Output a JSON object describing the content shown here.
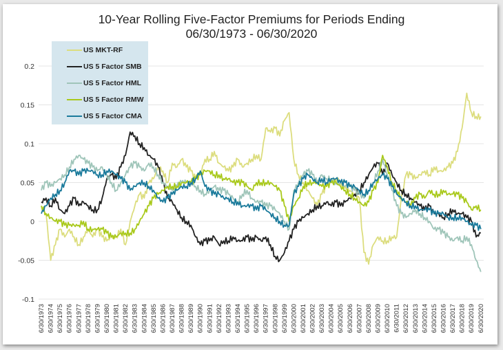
{
  "chart_data": {
    "type": "line",
    "title": "10-Year Rolling Five-Factor Premiums for Periods Ending",
    "subtitle": "06/30/1973 - 06/30/2020",
    "xlabel": "",
    "ylabel": "",
    "ylim": [
      -0.1,
      0.2
    ],
    "yticks": [
      0.2,
      0.15,
      0.1,
      0.05,
      0,
      -0.05,
      -0.1
    ],
    "ytick_labels": [
      "0.2",
      "0.15",
      "0.1",
      "0.05",
      "0",
      "-0.05",
      "-0.1"
    ],
    "grid": true,
    "legend_position": "top-left",
    "x_tick_labels": [
      "6/30/1973",
      "6/30/1974",
      "6/30/1975",
      "6/30/1976",
      "6/30/1977",
      "6/30/1978",
      "6/30/1979",
      "6/30/1980",
      "6/30/1981",
      "6/30/1982",
      "6/30/1983",
      "6/30/1984",
      "6/30/1985",
      "6/30/1986",
      "6/30/1987",
      "6/30/1988",
      "6/30/1989",
      "6/30/1990",
      "6/30/1991",
      "6/30/1992",
      "6/30/1993",
      "6/30/1994",
      "6/30/1995",
      "6/30/1996",
      "6/30/1997",
      "6/30/1998",
      "6/30/1999",
      "6/30/2000",
      "6/30/2001",
      "6/30/2002",
      "6/30/2003",
      "6/30/2004",
      "6/30/2005",
      "6/30/2006",
      "6/30/2007",
      "6/30/2008",
      "6/30/2009",
      "6/30/2010",
      "6/30/2011",
      "6/30/2012",
      "6/30/2013",
      "6/30/2014",
      "6/30/2015",
      "6/30/2016",
      "6/30/2017",
      "6/30/2018",
      "6/30/2019",
      "6/30/2020"
    ],
    "x": [
      1973.5,
      1974,
      1974.5,
      1975,
      1975.5,
      1976,
      1976.5,
      1977,
      1977.5,
      1978,
      1978.5,
      1979,
      1979.5,
      1980,
      1980.5,
      1981,
      1981.5,
      1982,
      1982.5,
      1983,
      1983.5,
      1984,
      1984.5,
      1985,
      1985.5,
      1986,
      1986.5,
      1987,
      1987.5,
      1988,
      1988.5,
      1989,
      1989.5,
      1990,
      1990.5,
      1991,
      1991.5,
      1992,
      1992.5,
      1993,
      1993.5,
      1994,
      1994.5,
      1995,
      1995.5,
      1996,
      1996.5,
      1997,
      1997.5,
      1998,
      1998.5,
      1999,
      1999.5,
      2000,
      2000.5,
      2001,
      2001.5,
      2002,
      2002.5,
      2003,
      2003.5,
      2004,
      2004.5,
      2005,
      2005.5,
      2006,
      2006.5,
      2007,
      2007.5,
      2008,
      2008.5,
      2009,
      2009.5,
      2010,
      2010.5,
      2011,
      2011.5,
      2012,
      2012.5,
      2013,
      2013.5,
      2014,
      2014.5,
      2015,
      2015.5,
      2016,
      2016.5,
      2017,
      2017.5,
      2018,
      2018.5,
      2019,
      2019.5,
      2020,
      2020.5
    ],
    "series": [
      {
        "name": "US MKT-RF",
        "color": "#dcdd7e",
        "values": [
          0.02,
          0.01,
          -0.05,
          -0.03,
          -0.01,
          -0.02,
          -0.01,
          -0.02,
          -0.03,
          -0.02,
          -0.01,
          -0.02,
          -0.01,
          -0.02,
          -0.025,
          -0.02,
          -0.02,
          -0.01,
          -0.03,
          0.0,
          0.02,
          0.035,
          0.03,
          0.05,
          0.055,
          0.07,
          0.065,
          0.05,
          0.075,
          0.07,
          0.08,
          0.07,
          0.065,
          0.055,
          0.06,
          0.08,
          0.08,
          0.09,
          0.075,
          0.07,
          0.065,
          0.07,
          0.08,
          0.07,
          0.075,
          0.08,
          0.085,
          0.08,
          0.12,
          0.115,
          0.12,
          0.11,
          0.13,
          0.14,
          0.08,
          0.06,
          0.05,
          0.04,
          0.03,
          0.02,
          0.035,
          0.045,
          0.05,
          0.055,
          0.05,
          0.045,
          0.04,
          0.035,
          0.03,
          -0.04,
          -0.055,
          -0.03,
          -0.02,
          -0.025,
          -0.025,
          -0.02,
          -0.02,
          0.03,
          0.06,
          0.06,
          0.055,
          0.06,
          0.065,
          0.06,
          0.07,
          0.065,
          0.065,
          0.07,
          0.075,
          0.09,
          0.12,
          0.165,
          0.14,
          0.135,
          0.135
        ]
      },
      {
        "name": "US 5 Factor SMB",
        "color": "#222222",
        "values": [
          0.025,
          0.03,
          0.02,
          0.03,
          0.015,
          0.01,
          0.02,
          0.03,
          0.02,
          0.025,
          0.02,
          0.015,
          0.015,
          0.03,
          0.055,
          0.06,
          0.055,
          0.07,
          0.085,
          0.115,
          0.11,
          0.1,
          0.095,
          0.085,
          0.08,
          0.07,
          0.05,
          0.03,
          0.025,
          0.015,
          0.005,
          0.0,
          -0.005,
          -0.02,
          -0.03,
          -0.025,
          -0.025,
          -0.02,
          -0.03,
          -0.025,
          -0.025,
          -0.02,
          -0.025,
          -0.025,
          -0.02,
          -0.025,
          -0.02,
          -0.025,
          -0.02,
          -0.03,
          -0.045,
          -0.05,
          -0.04,
          -0.025,
          -0.01,
          0.0,
          0.005,
          0.01,
          0.015,
          0.02,
          0.02,
          0.025,
          0.02,
          0.025,
          0.02,
          0.025,
          0.03,
          0.035,
          0.04,
          0.05,
          0.06,
          0.07,
          0.075,
          0.06,
          0.075,
          0.06,
          0.05,
          0.04,
          0.035,
          0.03,
          0.025,
          0.02,
          0.015,
          0.02,
          0.01,
          0.01,
          0.005,
          0.01,
          0.015,
          0.01,
          0.01,
          0.005,
          0.0,
          -0.02,
          -0.015
        ]
      },
      {
        "name": "US 5 Factor HML",
        "color": "#9fc5b9",
        "values": [
          0.04,
          0.05,
          0.045,
          0.05,
          0.055,
          0.06,
          0.07,
          0.08,
          0.085,
          0.08,
          0.075,
          0.07,
          0.065,
          0.07,
          0.06,
          0.05,
          0.04,
          0.05,
          0.06,
          0.07,
          0.075,
          0.07,
          0.065,
          0.075,
          0.07,
          0.06,
          0.05,
          0.045,
          0.04,
          0.045,
          0.05,
          0.05,
          0.05,
          0.045,
          0.04,
          0.035,
          0.04,
          0.045,
          0.04,
          0.04,
          0.035,
          0.03,
          0.025,
          0.035,
          0.04,
          0.03,
          0.025,
          0.025,
          0.02,
          0.02,
          0.015,
          0.01,
          0.0,
          -0.01,
          0.04,
          0.05,
          0.06,
          0.065,
          0.06,
          0.05,
          0.06,
          0.055,
          0.055,
          0.05,
          0.05,
          0.045,
          0.045,
          0.04,
          0.035,
          0.03,
          0.04,
          0.05,
          0.065,
          0.08,
          0.06,
          0.04,
          0.02,
          0.01,
          0.005,
          0.01,
          0.015,
          0.01,
          0.005,
          0.0,
          -0.01,
          -0.01,
          -0.015,
          -0.02,
          -0.025,
          -0.02,
          -0.025,
          -0.02,
          -0.03,
          -0.05,
          -0.065
        ]
      },
      {
        "name": "US 5 Factor RMW",
        "color": "#a9c91b",
        "values": [
          0.02,
          0.01,
          0.005,
          0.0,
          0.0,
          -0.005,
          -0.005,
          -0.005,
          -0.005,
          0.0,
          -0.01,
          -0.01,
          -0.01,
          -0.01,
          -0.015,
          -0.02,
          -0.02,
          -0.015,
          -0.015,
          -0.015,
          -0.01,
          0.0,
          0.01,
          0.02,
          0.03,
          0.035,
          0.04,
          0.045,
          0.045,
          0.045,
          0.05,
          0.05,
          0.05,
          0.055,
          0.06,
          0.065,
          0.065,
          0.06,
          0.06,
          0.055,
          0.055,
          0.05,
          0.05,
          0.05,
          0.045,
          0.04,
          0.05,
          0.05,
          0.05,
          0.05,
          0.045,
          0.04,
          0.02,
          0.0,
          0.02,
          0.03,
          0.045,
          0.05,
          0.05,
          0.05,
          0.045,
          0.045,
          0.05,
          0.05,
          0.045,
          0.04,
          0.035,
          0.03,
          0.025,
          0.02,
          0.025,
          0.04,
          0.05,
          0.085,
          0.07,
          0.05,
          0.04,
          0.03,
          0.025,
          0.02,
          0.03,
          0.035,
          0.03,
          0.04,
          0.035,
          0.035,
          0.04,
          0.035,
          0.035,
          0.035,
          0.03,
          0.025,
          0.015,
          0.02,
          0.015
        ]
      },
      {
        "name": "US 5 Factor CMA",
        "color": "#1a7a9b",
        "values": [
          0.01,
          0.02,
          0.03,
          0.035,
          0.04,
          0.05,
          0.065,
          0.065,
          0.06,
          0.065,
          0.065,
          0.065,
          0.06,
          0.06,
          0.065,
          0.065,
          0.06,
          0.055,
          0.05,
          0.04,
          0.045,
          0.05,
          0.05,
          0.045,
          0.04,
          0.03,
          0.025,
          0.03,
          0.035,
          0.04,
          0.045,
          0.045,
          0.05,
          0.055,
          0.065,
          0.045,
          0.04,
          0.035,
          0.035,
          0.03,
          0.03,
          0.025,
          0.025,
          0.02,
          0.02,
          0.02,
          0.015,
          0.02,
          0.015,
          0.01,
          0.005,
          0.0,
          -0.005,
          -0.005,
          0.035,
          0.045,
          0.055,
          0.06,
          0.055,
          0.05,
          0.055,
          0.05,
          0.055,
          0.055,
          0.05,
          0.05,
          0.045,
          0.045,
          0.04,
          0.035,
          0.04,
          0.05,
          0.055,
          0.06,
          0.055,
          0.045,
          0.035,
          0.03,
          0.025,
          0.02,
          0.02,
          0.015,
          0.015,
          0.015,
          0.01,
          0.01,
          0.01,
          0.005,
          0.005,
          0.005,
          0.005,
          0.0,
          -0.005,
          -0.005,
          -0.01
        ]
      }
    ]
  }
}
